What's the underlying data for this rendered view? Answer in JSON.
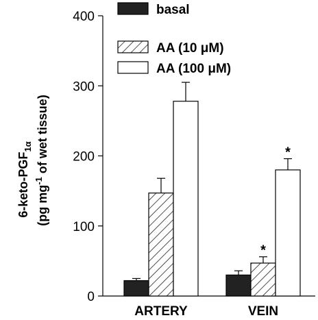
{
  "chart_data": {
    "type": "bar",
    "categories": [
      "ARTERY",
      "VEIN"
    ],
    "ylabel": {
      "line1": "6-keto-PGF",
      "line1_sub": "1α",
      "line2_pre": "(pg mg",
      "line2_sup": "-1",
      "line2_post": " of wet tissue)"
    },
    "ylim": [
      0,
      400
    ],
    "yticks": [
      "0",
      "100",
      "200",
      "300",
      "400"
    ],
    "legend_position": "top",
    "series": [
      {
        "name": "basal",
        "fill": "solid",
        "color": "#222222",
        "values": [
          22,
          30
        ],
        "errors": [
          3,
          6
        ],
        "significant": [
          false,
          false
        ]
      },
      {
        "name": "AA (10 μM)",
        "fill": "hatched",
        "color": "#ffffff",
        "values": [
          147,
          47
        ],
        "errors": [
          21,
          9
        ],
        "significant": [
          false,
          true
        ]
      },
      {
        "name": "AA (100 μM)",
        "fill": "open",
        "color": "#ffffff",
        "values": [
          278,
          180
        ],
        "errors": [
          27,
          16
        ],
        "significant": [
          false,
          true
        ]
      }
    ],
    "significance_marker": "*"
  }
}
